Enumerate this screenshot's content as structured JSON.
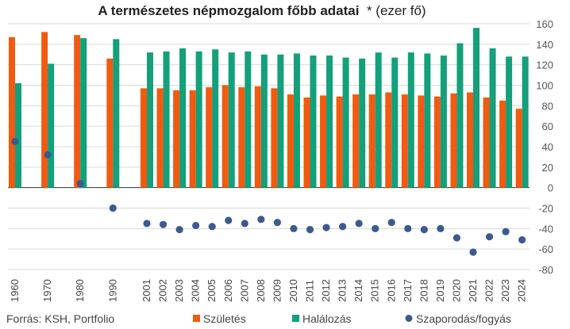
{
  "title": "A természetes népmozgalom főbb adatai",
  "subtitle": "* (ezer fő)",
  "source": "Forrás: KSH, Portfolio",
  "colors": {
    "births": "#f25a10",
    "deaths": "#13a07a",
    "natural": "#3c5a8e",
    "grid": "#d9d9d9",
    "zero_line": "#333333"
  },
  "chart_data": {
    "type": "bar",
    "categories": [
      "1960",
      "1970",
      "1980",
      "1990",
      "2001",
      "2002",
      "2003",
      "2004",
      "2005",
      "2006",
      "2007",
      "2008",
      "2009",
      "2010",
      "2011",
      "2012",
      "2013",
      "2014",
      "2015",
      "2016",
      "2017",
      "2018",
      "2019",
      "2020",
      "2021",
      "2022",
      "2023",
      "2024"
    ],
    "series": [
      {
        "name": "Születés",
        "type": "bar",
        "values": [
          147,
          152,
          149,
          126,
          97,
          97,
          95,
          95,
          98,
          100,
          98,
          99,
          97,
          91,
          88,
          90,
          89,
          91,
          91,
          93,
          91,
          90,
          89,
          92,
          93,
          88,
          85,
          77
        ]
      },
      {
        "name": "Halálozás",
        "type": "bar",
        "values": [
          102,
          121,
          146,
          145,
          132,
          133,
          136,
          133,
          135,
          132,
          133,
          130,
          130,
          131,
          129,
          129,
          127,
          126,
          132,
          127,
          132,
          131,
          129,
          141,
          156,
          136,
          128,
          128
        ]
      },
      {
        "name": "Szaporodás/fogyás",
        "type": "scatter",
        "values": [
          45,
          32,
          4,
          -20,
          -35,
          -36,
          -41,
          -37,
          -38,
          -32,
          -35,
          -31,
          -34,
          -40,
          -41,
          -39,
          -38,
          -35,
          -40,
          -34,
          -40,
          -41,
          -40,
          -49,
          -63,
          -48,
          -43,
          -51
        ]
      }
    ],
    "ylim": [
      -80,
      160
    ],
    "yticks": [
      160,
      140,
      120,
      100,
      80,
      60,
      40,
      20,
      0,
      -20,
      -40,
      -60,
      -80
    ],
    "y_axis_side": "right",
    "grid": true,
    "legend": "bottom"
  }
}
